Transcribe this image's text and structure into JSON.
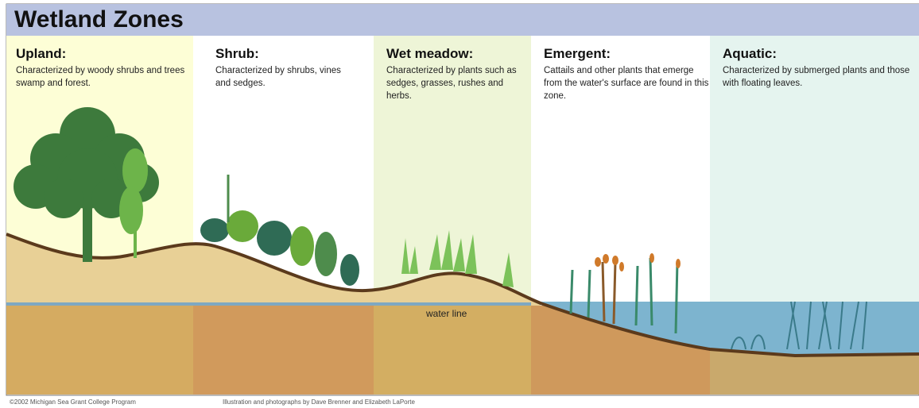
{
  "title": "Wetland Zones",
  "zones": [
    {
      "name": "Upland:",
      "description": "Characterized by woody shrubs and trees swamp and forest."
    },
    {
      "name": "Shrub:",
      "description": "Characterized by shrubs, vines and sedges."
    },
    {
      "name": "Wet meadow:",
      "description": "Characterized by plants such as sedges, grasses, rushes and herbs."
    },
    {
      "name": "Emergent:",
      "description": "Cattails and other plants that emerge from the water's surface are found in this zone."
    },
    {
      "name": "Aquatic:",
      "description": "Characterized by submerged plants and those with floating leaves."
    }
  ],
  "water_line_label": "water line",
  "credits": [
    "©2002 Michigan Sea Grant College Program",
    "Illustration and photographs by Dave Brenner and Elizabeth LaPorte"
  ]
}
